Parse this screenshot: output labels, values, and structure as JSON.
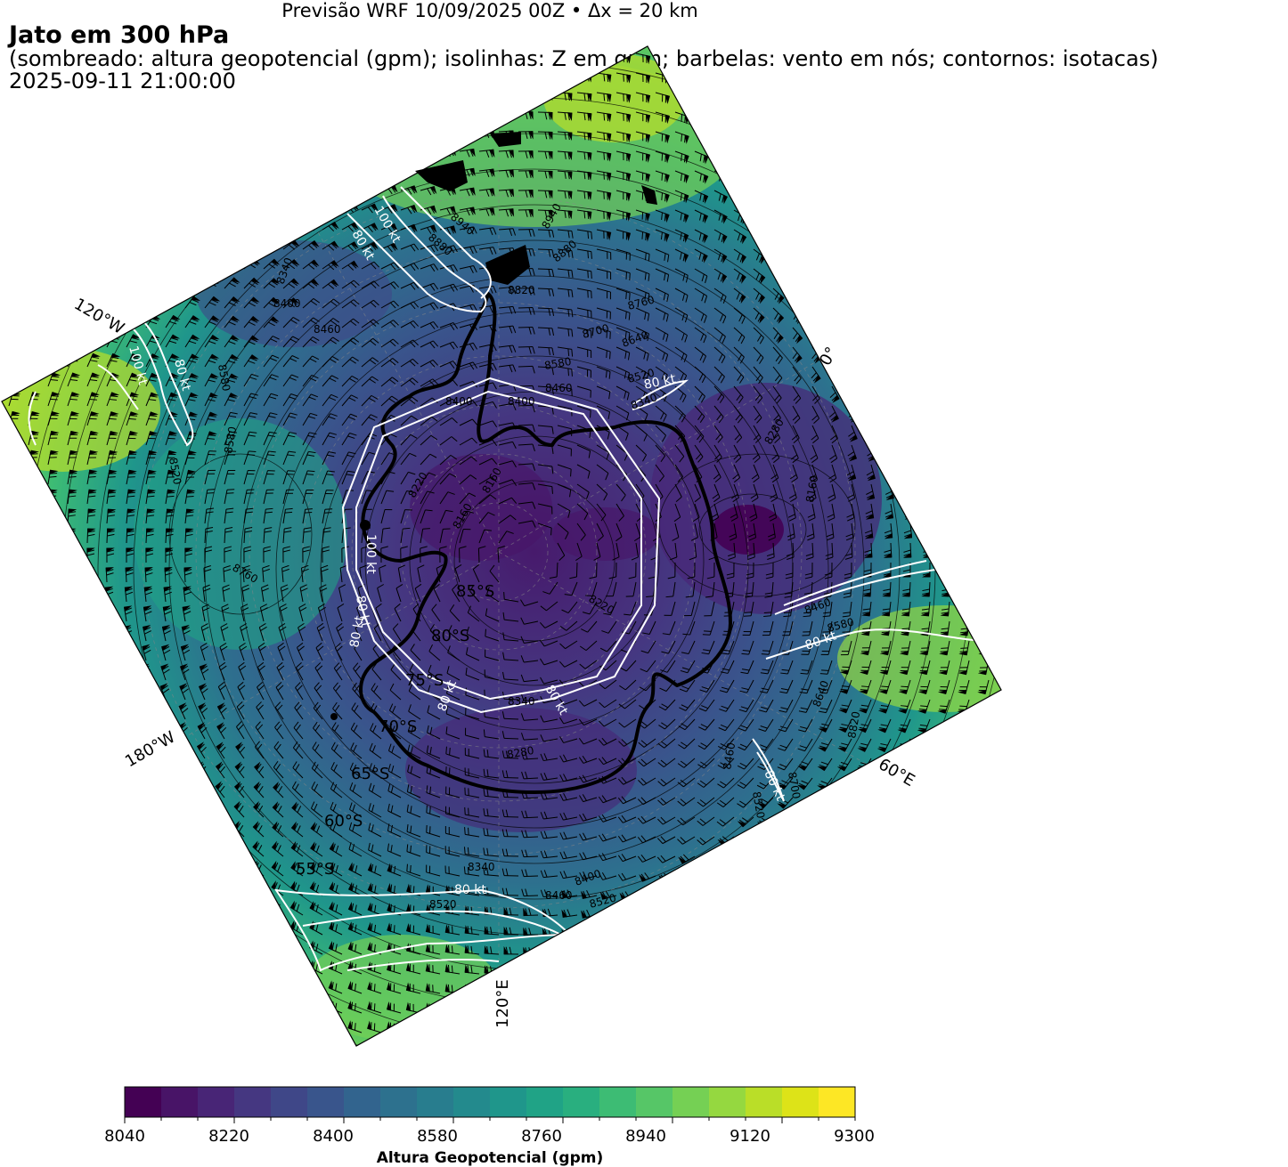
{
  "header": {
    "forecast_line": "Previsão WRF 10/09/2025 00Z • Δx = 20 km",
    "title": "Jato em 300 hPa",
    "subtitle": "(sombreado: altura geopotencial (gpm); isolinhas: Z em gpm; barbelas: vento em nós; contornos: isotacas)",
    "valid_time": "2025-09-11 21:00:00"
  },
  "map": {
    "projection": "south-polar stereographic (rotated)",
    "longitude_labels": [
      "120°W",
      "0°",
      "60°E",
      "180°W",
      "120°E"
    ],
    "latitude_labels": [
      "85°S",
      "80°S",
      "75°S",
      "70°S",
      "65°S",
      "60°S",
      "55°S"
    ],
    "isotach_labels": [
      "80 kt",
      "100 kt"
    ],
    "height_contour_labels": [
      "8160",
      "8220",
      "8280",
      "8340",
      "8400",
      "8460",
      "8520",
      "8580",
      "8640",
      "8700",
      "8760",
      "8820",
      "8880",
      "8940"
    ],
    "colors": {
      "isotach": "#ffffff",
      "coastline": "#000000",
      "contour": "#000000"
    }
  },
  "colorbar": {
    "label": "Altura Geopotencial (gpm)",
    "min": 8040,
    "max": 9300,
    "step": 60,
    "tick_labels": [
      "8040",
      "8220",
      "8400",
      "8580",
      "8760",
      "8940",
      "9120",
      "9300"
    ],
    "colors": [
      "#440154",
      "#481467",
      "#482576",
      "#453781",
      "#3f4788",
      "#39558c",
      "#32648e",
      "#2d718e",
      "#287d8e",
      "#238a8d",
      "#1f968b",
      "#20a386",
      "#29af7f",
      "#3dbc74",
      "#56c667",
      "#75d054",
      "#95d840",
      "#bade28",
      "#dde318",
      "#fde725"
    ]
  }
}
